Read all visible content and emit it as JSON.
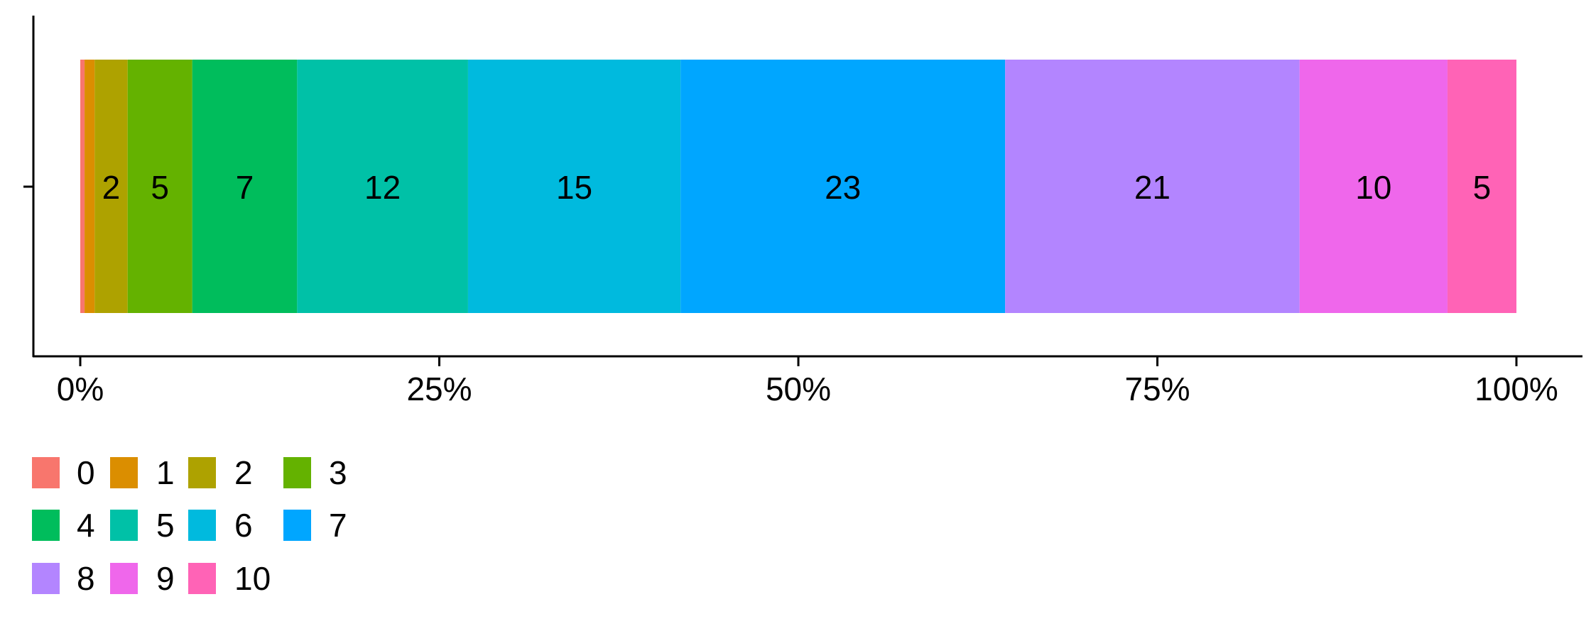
{
  "chart_data": {
    "type": "bar",
    "orientation": "horizontal",
    "stacked": true,
    "normalized": true,
    "title": "",
    "xlabel": "",
    "ylabel": "",
    "xlim": [
      0,
      100
    ],
    "x_ticks": [
      "0%",
      "25%",
      "50%",
      "75%",
      "100%"
    ],
    "x_tick_values": [
      0,
      25,
      50,
      75,
      100
    ],
    "grid": false,
    "legend_position": "bottom-left",
    "series": [
      {
        "name": "0",
        "value": 0.3,
        "label": "",
        "color": "#F8766D"
      },
      {
        "name": "1",
        "value": 0.7,
        "label": "",
        "color": "#DB8E00"
      },
      {
        "name": "2",
        "value": 2.3,
        "label": "2",
        "color": "#AEA200"
      },
      {
        "name": "3",
        "value": 4.5,
        "label": "5",
        "color": "#64B200"
      },
      {
        "name": "4",
        "value": 7.3,
        "label": "7",
        "color": "#00BD5C"
      },
      {
        "name": "5",
        "value": 11.9,
        "label": "12",
        "color": "#00C1A7"
      },
      {
        "name": "6",
        "value": 14.8,
        "label": "15",
        "color": "#00BADE"
      },
      {
        "name": "7",
        "value": 22.6,
        "label": "23",
        "color": "#00A6FF"
      },
      {
        "name": "8",
        "value": 20.5,
        "label": "21",
        "color": "#B385FF"
      },
      {
        "name": "9",
        "value": 10.3,
        "label": "10",
        "color": "#EF67EB"
      },
      {
        "name": "10",
        "value": 4.8,
        "label": "5",
        "color": "#FF63B6"
      }
    ]
  }
}
